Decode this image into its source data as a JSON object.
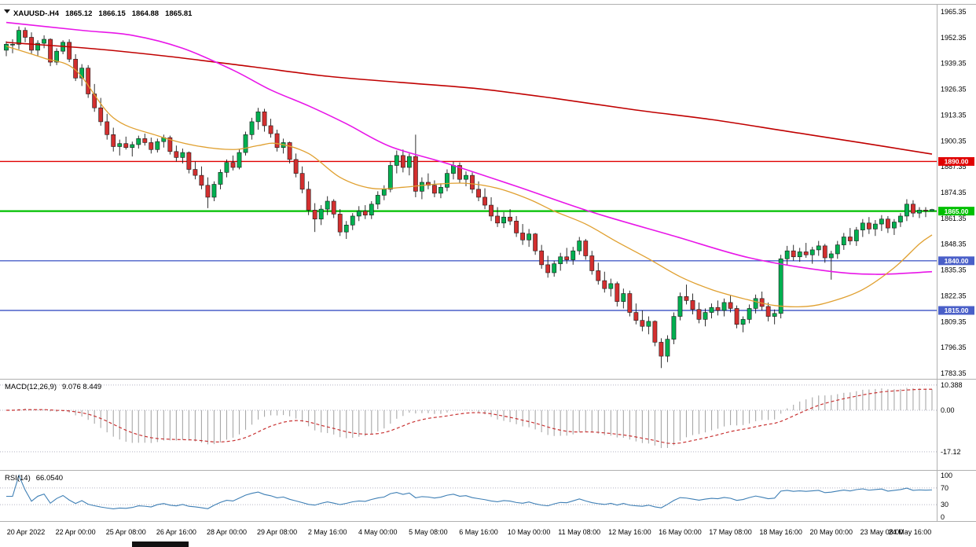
{
  "header": {
    "symbol": "XAUUSD-.H4",
    "open": "1865.12",
    "high": "1866.15",
    "low": "1864.88",
    "close": "1865.81"
  },
  "indicators": {
    "macd": {
      "name": "MACD(12,26,9)",
      "values": "9.076 8.449"
    },
    "rsi": {
      "name": "RSI(14)",
      "value": "66.0540"
    }
  },
  "chart_data": {
    "type": "candlestick",
    "symbol": "XAUUSD",
    "timeframe": "H4",
    "title": "XAUUSD-.H4 1865.12 1866.15 1864.88 1865.81",
    "y_axis": {
      "max": 1965.35,
      "min": 1783.35,
      "ticks": [
        "1965.35",
        "1952.35",
        "1939.35",
        "1926.35",
        "1913.35",
        "1900.35",
        "1887.35",
        "1874.35",
        "1861.35",
        "1848.35",
        "1835.35",
        "1822.35",
        "1809.35",
        "1796.35",
        "1783.35"
      ]
    },
    "x_labels": [
      "20 Apr 2022",
      "22 Apr 00:00",
      "25 Apr 08:00",
      "26 Apr 16:00",
      "28 Apr 00:00",
      "29 Apr 08:00",
      "2 May 16:00",
      "4 May 00:00",
      "5 May 08:00",
      "6 May 16:00",
      "10 May 00:00",
      "11 May 08:00",
      "12 May 16:00",
      "16 May 00:00",
      "17 May 08:00",
      "18 May 16:00",
      "20 May 00:00",
      "23 May 08:00",
      "24 May 16:00"
    ],
    "x_label_first": 3,
    "x_label_step": 8,
    "h_lines": [
      {
        "price": 1890.0,
        "label": "1890.00",
        "color": "#e00000",
        "width": 1.4
      },
      {
        "price": 1865.0,
        "label": "1865.00",
        "color": "#00c000",
        "width": 2.2
      },
      {
        "price": 1840.0,
        "label": "1840.00",
        "color": "#4a5fc8",
        "width": 1.4
      },
      {
        "price": 1815.0,
        "label": "1815.00",
        "color": "#4a5fc8",
        "width": 1.4
      }
    ],
    "moving_averages": [
      {
        "name": "ma-slow-red",
        "color": "#c00000",
        "width": 1.6,
        "points": [
          [
            0,
            1950
          ],
          [
            2,
            1949.5
          ],
          [
            14,
            1946.7
          ],
          [
            26,
            1942.8
          ],
          [
            39,
            1937.7
          ],
          [
            51,
            1932.9
          ],
          [
            63,
            1929.7
          ],
          [
            75,
            1926.6
          ],
          [
            87,
            1921.8
          ],
          [
            100,
            1915.9
          ],
          [
            112,
            1911.1
          ],
          [
            124,
            1905.2
          ],
          [
            136,
            1899.3
          ],
          [
            147,
            1893.7
          ]
        ]
      },
      {
        "name": "ma-mid-magenta",
        "color": "#e816e8",
        "width": 1.6,
        "points": [
          [
            0,
            1960
          ],
          [
            12,
            1956
          ],
          [
            20,
            1953.5
          ],
          [
            28,
            1947
          ],
          [
            36,
            1936
          ],
          [
            42,
            1926
          ],
          [
            48,
            1918
          ],
          [
            54,
            1909
          ],
          [
            61,
            1897.5
          ],
          [
            70,
            1889
          ],
          [
            81,
            1877.5
          ],
          [
            93,
            1864.5
          ],
          [
            106,
            1852.5
          ],
          [
            118,
            1841.5
          ],
          [
            130,
            1835
          ],
          [
            138,
            1833.2
          ],
          [
            147,
            1834.5
          ]
        ]
      },
      {
        "name": "ma-fast-orange",
        "color": "#e0a030",
        "width": 1.3,
        "points": [
          [
            0,
            1948
          ],
          [
            6,
            1942
          ],
          [
            11,
            1936
          ],
          [
            17,
            1912
          ],
          [
            24,
            1903
          ],
          [
            30,
            1898
          ],
          [
            36,
            1896
          ],
          [
            40,
            1898
          ],
          [
            43,
            1899
          ],
          [
            48,
            1894
          ],
          [
            53,
            1882
          ],
          [
            58,
            1876.5
          ],
          [
            63,
            1877
          ],
          [
            68,
            1878.5
          ],
          [
            73,
            1879
          ],
          [
            78,
            1876.5
          ],
          [
            83,
            1871
          ],
          [
            87,
            1865
          ],
          [
            92,
            1858.5
          ],
          [
            97,
            1849.5
          ],
          [
            102,
            1841
          ],
          [
            107,
            1832
          ],
          [
            112,
            1825.5
          ],
          [
            117,
            1821
          ],
          [
            122,
            1817.5
          ],
          [
            127,
            1817
          ],
          [
            131,
            1819.5
          ],
          [
            136,
            1825.5
          ],
          [
            141,
            1836.5
          ],
          [
            145,
            1848.5
          ],
          [
            147,
            1853
          ]
        ]
      }
    ],
    "candles": [
      [
        1946.0,
        1950.5,
        1943.0,
        1949.0
      ],
      [
        1949.0,
        1951.5,
        1944.5,
        1949.0
      ],
      [
        1949.0,
        1958.0,
        1946.5,
        1956.0
      ],
      [
        1956.0,
        1957.5,
        1950.0,
        1952.5
      ],
      [
        1952.5,
        1955.0,
        1944.0,
        1946.0
      ],
      [
        1946.0,
        1951.0,
        1943.0,
        1949.5
      ],
      [
        1949.5,
        1953.5,
        1947.0,
        1951.5
      ],
      [
        1951.5,
        1952.0,
        1938.0,
        1940.0
      ],
      [
        1940.0,
        1947.0,
        1938.5,
        1945.5
      ],
      [
        1945.5,
        1951.0,
        1944.0,
        1950.0
      ],
      [
        1950.0,
        1951.5,
        1940.0,
        1941.5
      ],
      [
        1941.5,
        1944.0,
        1930.5,
        1932.0
      ],
      [
        1932.0,
        1939.0,
        1928.0,
        1937.0
      ],
      [
        1937.0,
        1938.5,
        1922.0,
        1924.0
      ],
      [
        1924.0,
        1929.0,
        1915.0,
        1917.0
      ],
      [
        1917.0,
        1922.0,
        1908.0,
        1910.0
      ],
      [
        1910.0,
        1914.0,
        1901.0,
        1903.5
      ],
      [
        1903.5,
        1907.0,
        1895.0,
        1897.5
      ],
      [
        1897.5,
        1901.0,
        1893.0,
        1899.0
      ],
      [
        1899.0,
        1902.5,
        1896.0,
        1897.0
      ],
      [
        1897.0,
        1900.0,
        1892.5,
        1898.5
      ],
      [
        1898.5,
        1903.0,
        1896.5,
        1901.5
      ],
      [
        1901.5,
        1904.0,
        1898.0,
        1899.5
      ],
      [
        1899.5,
        1902.0,
        1894.0,
        1896.0
      ],
      [
        1896.0,
        1901.5,
        1894.5,
        1900.0
      ],
      [
        1900.0,
        1903.5,
        1897.0,
        1902.0
      ],
      [
        1902.0,
        1903.0,
        1893.5,
        1895.0
      ],
      [
        1895.0,
        1898.0,
        1890.0,
        1892.0
      ],
      [
        1892.0,
        1896.5,
        1889.0,
        1894.5
      ],
      [
        1894.5,
        1895.0,
        1884.0,
        1886.0
      ],
      [
        1886.0,
        1890.0,
        1881.0,
        1883.0
      ],
      [
        1883.0,
        1887.5,
        1876.0,
        1878.0
      ],
      [
        1878.0,
        1882.0,
        1866.5,
        1872.0
      ],
      [
        1872.0,
        1880.0,
        1870.0,
        1878.5
      ],
      [
        1878.5,
        1886.0,
        1876.0,
        1884.5
      ],
      [
        1884.5,
        1891.0,
        1882.0,
        1889.5
      ],
      [
        1889.5,
        1893.0,
        1885.5,
        1887.0
      ],
      [
        1887.0,
        1896.0,
        1886.0,
        1894.5
      ],
      [
        1894.5,
        1905.0,
        1893.0,
        1903.5
      ],
      [
        1903.5,
        1912.0,
        1901.0,
        1910.0
      ],
      [
        1910.0,
        1917.0,
        1906.0,
        1915.0
      ],
      [
        1915.0,
        1916.5,
        1905.0,
        1908.0
      ],
      [
        1908.0,
        1911.5,
        1902.0,
        1904.0
      ],
      [
        1904.0,
        1906.0,
        1895.0,
        1897.0
      ],
      [
        1897.0,
        1901.5,
        1894.0,
        1899.5
      ],
      [
        1899.5,
        1900.0,
        1889.0,
        1891.0
      ],
      [
        1891.0,
        1894.0,
        1882.0,
        1884.0
      ],
      [
        1884.0,
        1887.5,
        1874.0,
        1876.0
      ],
      [
        1876.0,
        1880.0,
        1863.0,
        1865.5
      ],
      [
        1865.5,
        1869.0,
        1854.5,
        1861.0
      ],
      [
        1861.0,
        1868.0,
        1858.0,
        1866.0
      ],
      [
        1866.0,
        1872.5,
        1863.0,
        1870.0
      ],
      [
        1870.0,
        1871.0,
        1861.5,
        1863.5
      ],
      [
        1863.5,
        1866.0,
        1852.5,
        1854.5
      ],
      [
        1854.5,
        1860.0,
        1851.0,
        1858.0
      ],
      [
        1858.0,
        1864.0,
        1855.5,
        1862.5
      ],
      [
        1862.5,
        1867.5,
        1860.0,
        1865.0
      ],
      [
        1865.0,
        1868.0,
        1861.0,
        1863.0
      ],
      [
        1863.0,
        1870.0,
        1861.0,
        1868.5
      ],
      [
        1868.5,
        1875.0,
        1866.0,
        1873.0
      ],
      [
        1873.0,
        1878.0,
        1870.5,
        1876.0
      ],
      [
        1876.0,
        1890.0,
        1874.5,
        1888.0
      ],
      [
        1888.0,
        1895.5,
        1884.0,
        1893.0
      ],
      [
        1893.0,
        1896.0,
        1884.5,
        1887.0
      ],
      [
        1887.0,
        1894.0,
        1883.0,
        1892.5
      ],
      [
        1892.5,
        1903.5,
        1872.0,
        1875.0
      ],
      [
        1875.0,
        1882.0,
        1871.0,
        1879.5
      ],
      [
        1879.5,
        1884.0,
        1876.0,
        1878.0
      ],
      [
        1878.0,
        1880.5,
        1872.0,
        1874.0
      ],
      [
        1874.0,
        1879.0,
        1871.5,
        1877.0
      ],
      [
        1877.0,
        1886.0,
        1875.0,
        1884.0
      ],
      [
        1884.0,
        1890.0,
        1881.0,
        1888.0
      ],
      [
        1888.0,
        1889.5,
        1879.0,
        1881.0
      ],
      [
        1881.0,
        1885.0,
        1877.5,
        1883.0
      ],
      [
        1883.0,
        1884.5,
        1874.0,
        1876.0
      ],
      [
        1876.0,
        1880.0,
        1870.0,
        1872.0
      ],
      [
        1872.0,
        1876.5,
        1866.0,
        1868.0
      ],
      [
        1868.0,
        1872.0,
        1860.0,
        1862.5
      ],
      [
        1862.5,
        1867.0,
        1857.0,
        1859.0
      ],
      [
        1859.0,
        1864.5,
        1856.5,
        1862.0
      ],
      [
        1862.0,
        1866.0,
        1858.0,
        1860.0
      ],
      [
        1860.0,
        1862.5,
        1852.0,
        1854.0
      ],
      [
        1854.0,
        1858.5,
        1848.0,
        1850.5
      ],
      [
        1850.5,
        1856.0,
        1847.0,
        1853.5
      ],
      [
        1853.5,
        1854.0,
        1843.0,
        1845.0
      ],
      [
        1845.0,
        1848.0,
        1836.0,
        1838.0
      ],
      [
        1838.0,
        1842.5,
        1831.5,
        1834.0
      ],
      [
        1834.0,
        1840.0,
        1832.0,
        1838.5
      ],
      [
        1838.5,
        1844.0,
        1835.0,
        1842.0
      ],
      [
        1842.0,
        1846.5,
        1838.5,
        1840.5
      ],
      [
        1840.5,
        1847.0,
        1838.0,
        1845.0
      ],
      [
        1845.0,
        1852.0,
        1843.0,
        1850.0
      ],
      [
        1850.0,
        1851.0,
        1840.5,
        1842.5
      ],
      [
        1842.5,
        1845.0,
        1833.0,
        1835.0
      ],
      [
        1835.0,
        1839.0,
        1828.0,
        1830.0
      ],
      [
        1830.0,
        1834.5,
        1824.0,
        1826.0
      ],
      [
        1826.0,
        1831.0,
        1822.0,
        1828.5
      ],
      [
        1828.5,
        1829.5,
        1817.0,
        1819.5
      ],
      [
        1819.5,
        1826.0,
        1816.0,
        1823.5
      ],
      [
        1823.5,
        1825.0,
        1812.0,
        1814.0
      ],
      [
        1814.0,
        1818.5,
        1808.0,
        1810.0
      ],
      [
        1810.0,
        1815.0,
        1804.5,
        1807.0
      ],
      [
        1807.0,
        1812.0,
        1803.0,
        1809.5
      ],
      [
        1809.5,
        1810.0,
        1797.0,
        1799.0
      ],
      [
        1799.0,
        1801.0,
        1786.0,
        1792.0
      ],
      [
        1792.0,
        1802.5,
        1789.0,
        1800.5
      ],
      [
        1800.5,
        1814.0,
        1798.0,
        1812.0
      ],
      [
        1812.0,
        1824.0,
        1810.0,
        1822.0
      ],
      [
        1822.0,
        1828.0,
        1818.0,
        1820.0
      ],
      [
        1820.0,
        1823.5,
        1813.0,
        1815.5
      ],
      [
        1815.5,
        1819.0,
        1808.5,
        1810.5
      ],
      [
        1810.5,
        1816.0,
        1807.0,
        1814.0
      ],
      [
        1814.0,
        1818.5,
        1811.0,
        1816.5
      ],
      [
        1816.5,
        1820.0,
        1812.5,
        1815.0
      ],
      [
        1815.0,
        1821.0,
        1812.0,
        1819.0
      ],
      [
        1819.0,
        1822.5,
        1814.0,
        1816.0
      ],
      [
        1816.0,
        1817.5,
        1806.0,
        1808.0
      ],
      [
        1808.0,
        1812.0,
        1804.0,
        1810.5
      ],
      [
        1810.5,
        1818.0,
        1808.5,
        1816.0
      ],
      [
        1816.0,
        1823.0,
        1813.5,
        1821.0
      ],
      [
        1821.0,
        1824.5,
        1815.0,
        1817.0
      ],
      [
        1817.0,
        1819.0,
        1809.5,
        1812.0
      ],
      [
        1812.0,
        1815.5,
        1808.0,
        1813.5
      ],
      [
        1813.5,
        1843.0,
        1811.0,
        1841.0
      ],
      [
        1841.0,
        1847.5,
        1838.0,
        1845.0
      ],
      [
        1845.0,
        1848.0,
        1840.0,
        1842.0
      ],
      [
        1842.0,
        1846.5,
        1839.5,
        1844.5
      ],
      [
        1844.5,
        1849.0,
        1841.5,
        1843.0
      ],
      [
        1843.0,
        1847.0,
        1838.5,
        1845.5
      ],
      [
        1845.5,
        1850.0,
        1842.5,
        1847.5
      ],
      [
        1847.5,
        1848.5,
        1839.0,
        1841.5
      ],
      [
        1841.5,
        1845.0,
        1830.5,
        1843.5
      ],
      [
        1843.5,
        1850.0,
        1841.0,
        1848.0
      ],
      [
        1848.0,
        1854.0,
        1845.5,
        1852.0
      ],
      [
        1852.0,
        1856.5,
        1848.0,
        1850.0
      ],
      [
        1850.0,
        1857.0,
        1847.5,
        1855.5
      ],
      [
        1855.5,
        1861.0,
        1852.0,
        1859.0
      ],
      [
        1859.0,
        1862.0,
        1853.5,
        1856.0
      ],
      [
        1856.0,
        1860.5,
        1852.5,
        1858.5
      ],
      [
        1858.5,
        1863.0,
        1855.0,
        1861.0
      ],
      [
        1861.0,
        1862.5,
        1854.0,
        1856.5
      ],
      [
        1856.5,
        1861.0,
        1853.0,
        1859.5
      ],
      [
        1859.5,
        1864.0,
        1857.0,
        1862.5
      ],
      [
        1862.5,
        1871.0,
        1860.0,
        1868.5
      ],
      [
        1868.5,
        1870.5,
        1862.0,
        1864.0
      ],
      [
        1864.0,
        1867.0,
        1861.5,
        1865.5
      ],
      [
        1865.5,
        1867.0,
        1862.0,
        1865.1
      ],
      [
        1865.12,
        1866.15,
        1864.88,
        1865.81
      ]
    ],
    "macd": {
      "params": [
        12,
        26,
        9
      ],
      "axis_ticks": [
        "10.388",
        "0.00",
        "-17.12"
      ],
      "ylim": [
        -17.12,
        10.388
      ]
    },
    "rsi": {
      "period": 14,
      "levels": [
        70,
        30
      ],
      "axis_ticks": [
        "100",
        "70",
        "30",
        "0"
      ],
      "ylim": [
        0,
        100
      ]
    },
    "style": {
      "bull": "#00b050",
      "bear": "#d32f2f",
      "wick": "#1a1a1a",
      "bg": "#ffffff",
      "macd_hist": "#a8a8a8",
      "macd_signal": "#c83232",
      "rsi_line": "#3e7fb5",
      "levels_dotted": "#b4b4c4",
      "border": "#b0b0b0",
      "scrollbar": "#111111"
    }
  }
}
